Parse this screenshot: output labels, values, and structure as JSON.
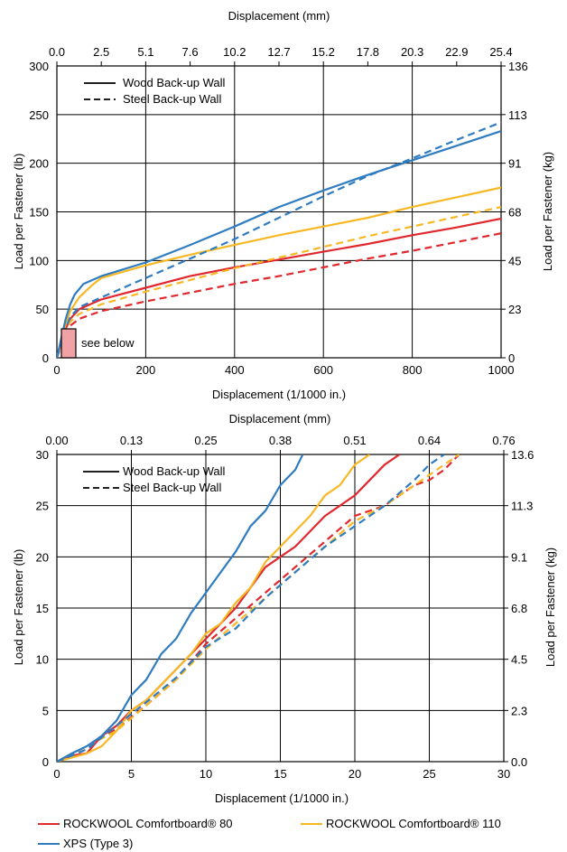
{
  "colors": {
    "red": "#e0282e",
    "yellow": "#f7b824",
    "blue": "#2f7cc0",
    "box": "#f0a2a4"
  },
  "legend": {
    "wood": "Wood Back-up Wall",
    "steel": "Steel Back-up Wall",
    "red": "ROCKWOOL Comfortboard® 80",
    "yellow": "ROCKWOOL Comfortboard® 110",
    "blue": "XPS (Type 3)"
  },
  "chart_data": [
    {
      "type": "line",
      "xlabel": "Displacement (1/1000 in.)",
      "ylabel": "Load per Fastener (lb)",
      "x2label": "Displacement (mm)",
      "y2label": "Load per Fastener (kg)",
      "xlim": [
        0,
        1000
      ],
      "ylim": [
        0,
        300
      ],
      "x_ticks": [
        "0",
        "200",
        "400",
        "600",
        "800",
        "1000"
      ],
      "y_ticks": [
        "0",
        "50",
        "100",
        "150",
        "200",
        "250",
        "300"
      ],
      "x2_ticks": [
        "0.0",
        "2.5",
        "5.1",
        "7.6",
        "10.2",
        "12.7",
        "15.2",
        "17.8",
        "20.3",
        "22.9",
        "25.4"
      ],
      "y2_ticks": [
        "0",
        "23",
        "45",
        "68",
        "91",
        "113",
        "136"
      ],
      "annotation": "see below",
      "series": [
        {
          "name": "ROCKWOOL Comfortboard® 80",
          "wall": "wood",
          "color": "red",
          "points": [
            [
              0,
              0
            ],
            [
              10,
              15
            ],
            [
              20,
              30
            ],
            [
              30,
              40
            ],
            [
              50,
              50
            ],
            [
              100,
              60
            ],
            [
              200,
              72
            ],
            [
              300,
              84
            ],
            [
              400,
              93
            ],
            [
              500,
              101
            ],
            [
              600,
              109
            ],
            [
              700,
              117
            ],
            [
              800,
              126
            ],
            [
              900,
              134
            ],
            [
              1000,
              143
            ]
          ]
        },
        {
          "name": "ROCKWOOL Comfortboard® 80",
          "wall": "steel",
          "color": "red",
          "points": [
            [
              0,
              0
            ],
            [
              10,
              12
            ],
            [
              20,
              25
            ],
            [
              30,
              33
            ],
            [
              50,
              40
            ],
            [
              100,
              48
            ],
            [
              200,
              58
            ],
            [
              300,
              67
            ],
            [
              400,
              76
            ],
            [
              500,
              84
            ],
            [
              600,
              93
            ],
            [
              700,
              102
            ],
            [
              800,
              110
            ],
            [
              900,
              119
            ],
            [
              1000,
              128
            ]
          ]
        },
        {
          "name": "ROCKWOOL Comfortboard® 110",
          "wall": "wood",
          "color": "yellow",
          "points": [
            [
              0,
              0
            ],
            [
              10,
              18
            ],
            [
              20,
              35
            ],
            [
              30,
              48
            ],
            [
              50,
              62
            ],
            [
              80,
              75
            ],
            [
              100,
              82
            ],
            [
              200,
              95
            ],
            [
              300,
              106
            ],
            [
              400,
              116
            ],
            [
              500,
              126
            ],
            [
              600,
              135
            ],
            [
              700,
              144
            ],
            [
              800,
              155
            ],
            [
              900,
              165
            ],
            [
              1000,
              175
            ]
          ]
        },
        {
          "name": "ROCKWOOL Comfortboard® 110",
          "wall": "steel",
          "color": "yellow",
          "points": [
            [
              0,
              0
            ],
            [
              10,
              14
            ],
            [
              20,
              28
            ],
            [
              30,
              37
            ],
            [
              50,
              45
            ],
            [
              100,
              55
            ],
            [
              200,
              68
            ],
            [
              300,
              80
            ],
            [
              400,
              92
            ],
            [
              500,
              103
            ],
            [
              600,
              114
            ],
            [
              700,
              125
            ],
            [
              800,
              135
            ],
            [
              900,
              145
            ],
            [
              1000,
              155
            ]
          ]
        },
        {
          "name": "XPS (Type 3)",
          "wall": "wood",
          "color": "blue",
          "points": [
            [
              0,
              0
            ],
            [
              10,
              20
            ],
            [
              20,
              40
            ],
            [
              30,
              55
            ],
            [
              40,
              65
            ],
            [
              60,
              76
            ],
            [
              100,
              84
            ],
            [
              200,
              98
            ],
            [
              300,
              116
            ],
            [
              400,
              135
            ],
            [
              500,
              155
            ],
            [
              600,
              172
            ],
            [
              700,
              188
            ],
            [
              800,
              203
            ],
            [
              900,
              218
            ],
            [
              1000,
              233
            ]
          ]
        },
        {
          "name": "XPS (Type 3)",
          "wall": "steel",
          "color": "blue",
          "points": [
            [
              0,
              0
            ],
            [
              10,
              15
            ],
            [
              20,
              30
            ],
            [
              30,
              42
            ],
            [
              50,
              52
            ],
            [
              100,
              62
            ],
            [
              200,
              82
            ],
            [
              300,
              102
            ],
            [
              400,
              122
            ],
            [
              500,
              144
            ],
            [
              600,
              166
            ],
            [
              700,
              187
            ],
            [
              800,
              205
            ],
            [
              900,
              224
            ],
            [
              1000,
              242
            ]
          ]
        }
      ]
    },
    {
      "type": "line",
      "xlabel": "Displacement (1/1000 in.)",
      "ylabel": "Load per Fastener (lb)",
      "x2label": "Displacement  (mm)",
      "y2label": "Load per Fastener (kg)",
      "xlim": [
        0,
        30
      ],
      "ylim": [
        0,
        30
      ],
      "x_ticks": [
        "0",
        "5",
        "10",
        "15",
        "20",
        "25",
        "30"
      ],
      "y_ticks": [
        "0",
        "5",
        "10",
        "15",
        "20",
        "25",
        "30"
      ],
      "x2_ticks": [
        "0.00",
        "0.13",
        "0.25",
        "0.38",
        "0.51",
        "0.64",
        "0.76"
      ],
      "y2_ticks": [
        "0.0",
        "2.3",
        "4.5",
        "6.8",
        "9.1",
        "11.3",
        "13.6"
      ],
      "series": [
        {
          "name": "ROCKWOOL Comfortboard® 80",
          "wall": "wood",
          "color": "red",
          "points": [
            [
              0,
              0
            ],
            [
              1,
              0.6
            ],
            [
              2,
              0.8
            ],
            [
              3,
              2.5
            ],
            [
              4,
              3.5
            ],
            [
              5,
              5
            ],
            [
              6,
              6
            ],
            [
              7,
              7.5
            ],
            [
              8,
              9
            ],
            [
              9,
              10.5
            ],
            [
              10,
              12
            ],
            [
              11,
              13.5
            ],
            [
              12,
              15
            ],
            [
              13,
              17
            ],
            [
              14,
              19
            ],
            [
              15,
              20
            ],
            [
              16,
              21
            ],
            [
              17,
              22.5
            ],
            [
              18,
              24
            ],
            [
              19,
              25
            ],
            [
              20,
              26
            ],
            [
              21,
              27.5
            ],
            [
              22,
              29
            ],
            [
              23,
              30
            ]
          ]
        },
        {
          "name": "ROCKWOOL Comfortboard® 80",
          "wall": "steel",
          "color": "red",
          "points": [
            [
              0,
              0
            ],
            [
              2,
              1.5
            ],
            [
              4,
              3.2
            ],
            [
              6,
              5.5
            ],
            [
              8,
              8
            ],
            [
              10,
              11.5
            ],
            [
              12,
              14
            ],
            [
              14,
              16.5
            ],
            [
              16,
              19
            ],
            [
              18,
              21.5
            ],
            [
              20,
              24
            ],
            [
              22,
              25
            ],
            [
              24,
              27
            ],
            [
              25,
              27.5
            ],
            [
              26,
              28.5
            ],
            [
              27,
              30
            ]
          ]
        },
        {
          "name": "ROCKWOOL Comfortboard® 110",
          "wall": "wood",
          "color": "yellow",
          "points": [
            [
              0,
              0
            ],
            [
              2,
              0.8
            ],
            [
              3,
              1.5
            ],
            [
              4,
              3
            ],
            [
              5,
              5
            ],
            [
              6,
              6
            ],
            [
              7,
              7.5
            ],
            [
              8,
              9
            ],
            [
              9,
              10.5
            ],
            [
              10,
              12.5
            ],
            [
              11,
              13.5
            ],
            [
              12,
              15.5
            ],
            [
              13,
              17
            ],
            [
              14,
              19.5
            ],
            [
              15,
              21
            ],
            [
              16,
              22.5
            ],
            [
              17,
              24
            ],
            [
              18,
              26
            ],
            [
              19,
              27
            ],
            [
              20,
              29
            ],
            [
              21,
              30
            ]
          ]
        },
        {
          "name": "ROCKWOOL Comfortboard® 110",
          "wall": "steel",
          "color": "yellow",
          "points": [
            [
              0,
              0
            ],
            [
              2,
              1.5
            ],
            [
              4,
              3
            ],
            [
              6,
              5.5
            ],
            [
              8,
              8
            ],
            [
              10,
              11
            ],
            [
              12,
              13.5
            ],
            [
              14,
              16
            ],
            [
              16,
              18.5
            ],
            [
              18,
              21
            ],
            [
              20,
              23.5
            ],
            [
              22,
              25
            ],
            [
              24,
              27
            ],
            [
              25,
              28
            ],
            [
              26,
              29
            ],
            [
              27,
              30
            ]
          ]
        },
        {
          "name": "XPS (Type 3)",
          "wall": "wood",
          "color": "blue",
          "points": [
            [
              0,
              0
            ],
            [
              1,
              0.8
            ],
            [
              2,
              1.5
            ],
            [
              3,
              2.5
            ],
            [
              4,
              4
            ],
            [
              5,
              6.5
            ],
            [
              6,
              8
            ],
            [
              7,
              10.5
            ],
            [
              8,
              12
            ],
            [
              9,
              14.5
            ],
            [
              10,
              16.5
            ],
            [
              11,
              18.5
            ],
            [
              12,
              20.5
            ],
            [
              13,
              23
            ],
            [
              14,
              24.5
            ],
            [
              15,
              27
            ],
            [
              16,
              28.5
            ],
            [
              16.5,
              30
            ]
          ]
        },
        {
          "name": "XPS (Type 3)",
          "wall": "steel",
          "color": "blue",
          "points": [
            [
              0,
              0
            ],
            [
              2,
              1.2
            ],
            [
              4,
              3.5
            ],
            [
              6,
              5.8
            ],
            [
              8,
              8.2
            ],
            [
              10,
              11.2
            ],
            [
              12,
              13
            ],
            [
              14,
              16
            ],
            [
              16,
              18.5
            ],
            [
              18,
              21
            ],
            [
              20,
              23
            ],
            [
              22,
              25
            ],
            [
              24,
              27.5
            ],
            [
              25,
              29
            ],
            [
              26,
              30
            ]
          ]
        }
      ]
    }
  ]
}
